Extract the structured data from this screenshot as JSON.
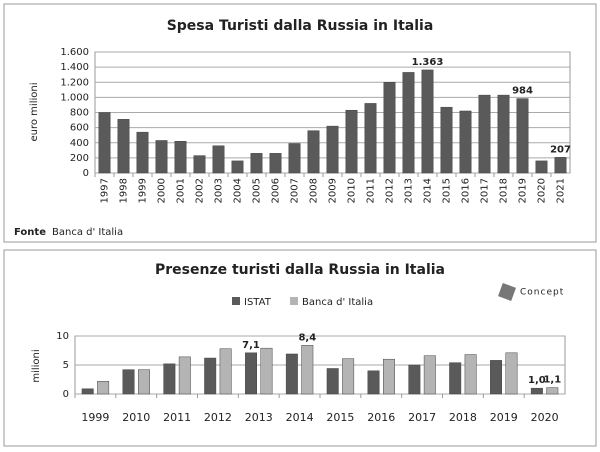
{
  "chart_data": [
    {
      "type": "bar",
      "title": "Spesa Turisti dalla Russia in Italia",
      "y_label": "euro milioni",
      "source_label": "Fonte",
      "source": "Banca d' Italia",
      "color": "#5a5a5a",
      "categories": [
        "1997",
        "1998",
        "1999",
        "2000",
        "2001",
        "2002",
        "2003",
        "2004",
        "2005",
        "2006",
        "2007",
        "2008",
        "2009",
        "2010",
        "2011",
        "2012",
        "2013",
        "2014",
        "2015",
        "2016",
        "2017",
        "2018",
        "2019",
        "2020",
        "2021"
      ],
      "values": [
        800,
        710,
        540,
        430,
        420,
        230,
        360,
        160,
        260,
        260,
        390,
        560,
        620,
        830,
        920,
        1200,
        1330,
        1363,
        870,
        820,
        1030,
        1030,
        984,
        160,
        207
      ],
      "value_labels": [
        null,
        null,
        null,
        null,
        null,
        null,
        null,
        null,
        null,
        null,
        null,
        null,
        null,
        null,
        null,
        null,
        null,
        "1.363",
        null,
        null,
        null,
        null,
        "984",
        null,
        "207"
      ],
      "ylim": [
        0,
        1600
      ],
      "yticks": [
        0,
        200,
        400,
        600,
        800,
        {
          "value": 1000,
          "label": "1.000"
        },
        {
          "value": 1200,
          "label": "1.200"
        },
        {
          "value": 1400,
          "label": "1.400"
        },
        {
          "value": 1600,
          "label": "1.600"
        }
      ],
      "grid": true
    },
    {
      "type": "grouped_bar",
      "title": "Presenze turisti dalla Russia in Italia",
      "y_label": "milioni",
      "logo": "Concept",
      "categories": [
        "1999",
        "2010",
        "2011",
        "2012",
        "2013",
        "2014",
        "2015",
        "2016",
        "2017",
        "2018",
        "2019",
        "2020"
      ],
      "series": [
        {
          "name": "ISTAT",
          "color": "#5a5a5a",
          "values": [
            0.9,
            4.2,
            5.2,
            6.2,
            7.1,
            6.9,
            4.4,
            4.0,
            5.0,
            5.4,
            5.8,
            1.0
          ],
          "value_labels": [
            null,
            null,
            null,
            null,
            "7,1",
            null,
            null,
            null,
            null,
            null,
            null,
            "1,0"
          ]
        },
        {
          "name": "Banca d' Italia",
          "color": "#b4b4b4",
          "values": [
            2.2,
            4.2,
            6.4,
            7.8,
            7.9,
            8.4,
            6.1,
            6.0,
            6.6,
            6.8,
            7.1,
            1.1
          ],
          "value_labels": [
            null,
            null,
            null,
            null,
            null,
            "8,4",
            null,
            null,
            null,
            null,
            null,
            "1,1"
          ]
        }
      ],
      "ylim": [
        0,
        10
      ],
      "yticks": [
        0,
        5,
        10
      ],
      "grid": true,
      "legend": "top"
    }
  ]
}
